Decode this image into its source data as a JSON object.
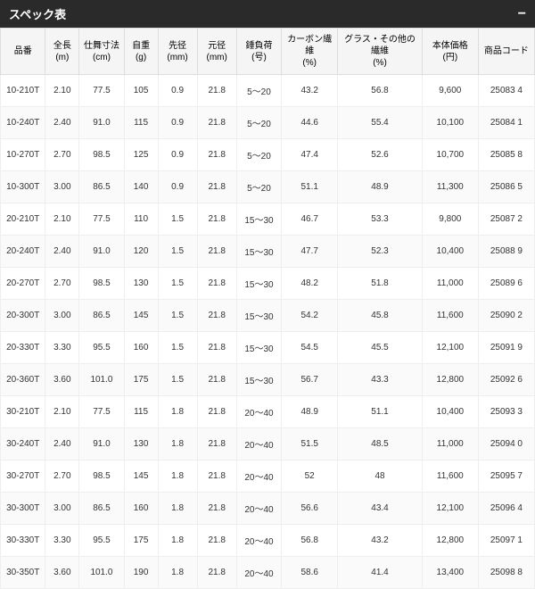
{
  "header": {
    "title": "スペック表",
    "toggle": "−"
  },
  "table": {
    "columns": [
      "品番",
      "全長\n(m)",
      "仕舞寸法\n(cm)",
      "自重\n(g)",
      "先径\n(mm)",
      "元径\n(mm)",
      "錘負荷\n(号)",
      "カーボン繊維\n(%)",
      "グラス・その他の繊維\n(%)",
      "本体価格\n(円)",
      "商品コード"
    ],
    "rows": [
      [
        "10-210T",
        "2.10",
        "77.5",
        "105",
        "0.9",
        "21.8",
        "5～20",
        "43.2",
        "56.8",
        "9,600",
        "25083 4"
      ],
      [
        "10-240T",
        "2.40",
        "91.0",
        "115",
        "0.9",
        "21.8",
        "5～20",
        "44.6",
        "55.4",
        "10,100",
        "25084 1"
      ],
      [
        "10-270T",
        "2.70",
        "98.5",
        "125",
        "0.9",
        "21.8",
        "5～20",
        "47.4",
        "52.6",
        "10,700",
        "25085 8"
      ],
      [
        "10-300T",
        "3.00",
        "86.5",
        "140",
        "0.9",
        "21.8",
        "5～20",
        "51.1",
        "48.9",
        "11,300",
        "25086 5"
      ],
      [
        "20-210T",
        "2.10",
        "77.5",
        "110",
        "1.5",
        "21.8",
        "15～30",
        "46.7",
        "53.3",
        "9,800",
        "25087 2"
      ],
      [
        "20-240T",
        "2.40",
        "91.0",
        "120",
        "1.5",
        "21.8",
        "15～30",
        "47.7",
        "52.3",
        "10,400",
        "25088 9"
      ],
      [
        "20-270T",
        "2.70",
        "98.5",
        "130",
        "1.5",
        "21.8",
        "15～30",
        "48.2",
        "51.8",
        "11,000",
        "25089 6"
      ],
      [
        "20-300T",
        "3.00",
        "86.5",
        "145",
        "1.5",
        "21.8",
        "15～30",
        "54.2",
        "45.8",
        "11,600",
        "25090 2"
      ],
      [
        "20-330T",
        "3.30",
        "95.5",
        "160",
        "1.5",
        "21.8",
        "15～30",
        "54.5",
        "45.5",
        "12,100",
        "25091 9"
      ],
      [
        "20-360T",
        "3.60",
        "101.0",
        "175",
        "1.5",
        "21.8",
        "15～30",
        "56.7",
        "43.3",
        "12,800",
        "25092 6"
      ],
      [
        "30-210T",
        "2.10",
        "77.5",
        "115",
        "1.8",
        "21.8",
        "20～40",
        "48.9",
        "51.1",
        "10,400",
        "25093 3"
      ],
      [
        "30-240T",
        "2.40",
        "91.0",
        "130",
        "1.8",
        "21.8",
        "20～40",
        "51.5",
        "48.5",
        "11,000",
        "25094 0"
      ],
      [
        "30-270T",
        "2.70",
        "98.5",
        "145",
        "1.8",
        "21.8",
        "20～40",
        "52",
        "48",
        "11,600",
        "25095 7"
      ],
      [
        "30-300T",
        "3.00",
        "86.5",
        "160",
        "1.8",
        "21.8",
        "20～40",
        "56.6",
        "43.4",
        "12,100",
        "25096 4"
      ],
      [
        "30-330T",
        "3.30",
        "95.5",
        "175",
        "1.8",
        "21.8",
        "20～40",
        "56.8",
        "43.2",
        "12,800",
        "25097 1"
      ],
      [
        "30-350T",
        "3.60",
        "101.0",
        "190",
        "1.8",
        "21.8",
        "20～40",
        "58.6",
        "41.4",
        "13,400",
        "25098 8"
      ]
    ]
  }
}
